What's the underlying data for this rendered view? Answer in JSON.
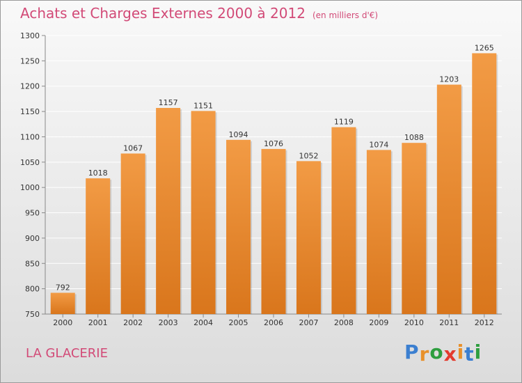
{
  "header": {
    "title": "Achats et Charges Externes 2000 à 2012",
    "subtitle": "(en milliers d'€)"
  },
  "footer": {
    "place": "LA GLACERIE",
    "logo_text": "Proxiti",
    "logo_letters": [
      "P",
      "r",
      "o",
      "x",
      "i",
      "t",
      "i"
    ],
    "logo_colors": [
      "#3b7fd0",
      "#e8902a",
      "#2e9e3f",
      "#e33b2e",
      "#e8902a",
      "#3b7fd0",
      "#2e9e3f"
    ]
  },
  "chart_data": {
    "type": "bar",
    "title": "Achats et Charges Externes 2000 à 2012",
    "subtitle": "(en milliers d'€)",
    "categories": [
      "2000",
      "2001",
      "2002",
      "2003",
      "2004",
      "2005",
      "2006",
      "2007",
      "2008",
      "2009",
      "2010",
      "2011",
      "2012"
    ],
    "values": [
      792,
      1018,
      1067,
      1157,
      1151,
      1094,
      1076,
      1052,
      1119,
      1074,
      1088,
      1203,
      1265
    ],
    "value_labels": [
      "792",
      "1018",
      "1067",
      "1157",
      "1151",
      "1094",
      "1076",
      "1052",
      "1119",
      "1074",
      "1088",
      "1203",
      "1265"
    ],
    "ylim": [
      750,
      1300
    ],
    "yticks": [
      750,
      800,
      850,
      900,
      950,
      1000,
      1050,
      1100,
      1150,
      1200,
      1250,
      1300
    ],
    "ytick_labels": [
      "750",
      "800",
      "850",
      "900",
      "950",
      "1000",
      "1050",
      "1100",
      "1150",
      "1200",
      "1250",
      "1300"
    ],
    "grid": true,
    "bar_color": "#f29b45",
    "bar_color_dark": "#d9761c"
  }
}
